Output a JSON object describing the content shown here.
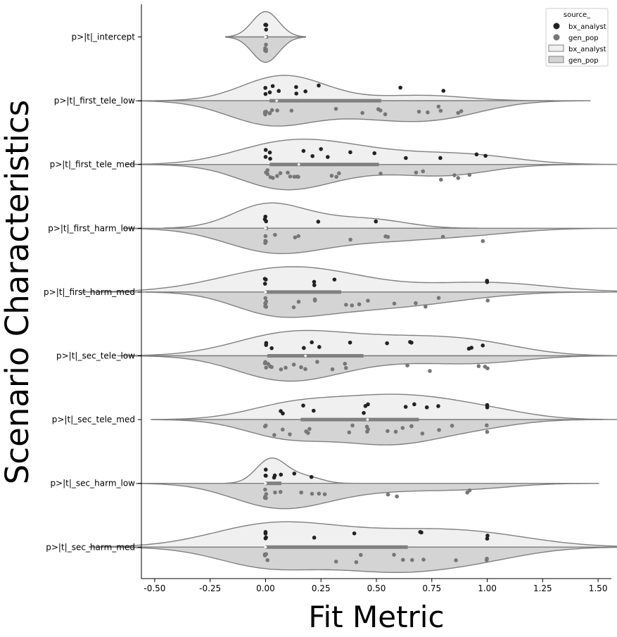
{
  "chart_data": {
    "type": "violin",
    "orientation": "horizontal",
    "xlabel": "Fit Metric",
    "ylabel": "Scenario Characteristics",
    "xlim": [
      -0.56,
      1.56
    ],
    "xticks": [
      "-0.50",
      "-0.25",
      "0.00",
      "0.25",
      "0.50",
      "0.75",
      "1.00",
      "1.25",
      "1.50"
    ],
    "categories": [
      "p>|t|_intercept",
      "p>|t|_first_tele_low",
      "p>|t|_first_tele_med",
      "p>|t|_first_harm_low",
      "p>|t|_first_harm_med",
      "p>|t|_sec_tele_low",
      "p>|t|_sec_tele_med",
      "p>|t|_sec_harm_low",
      "p>|t|_sec_harm_med"
    ],
    "legend": {
      "title": "source_",
      "position": "top-right",
      "entries": [
        {
          "label": "bx_analyst",
          "kind": "point",
          "color": "#222222"
        },
        {
          "label": "gen_pop",
          "kind": "point",
          "color": "#777777"
        },
        {
          "label": "bx_analyst",
          "kind": "patch",
          "color": "#f0f0f0"
        },
        {
          "label": "gen_pop",
          "kind": "patch",
          "color": "#d4d4d4"
        }
      ]
    },
    "colors": {
      "bx_analyst_point": "#222222",
      "gen_pop_point": "#777777",
      "bx_analyst_violin": "#f0f0f0",
      "gen_pop_violin": "#d4d4d4",
      "outline": "#808080"
    },
    "series": [
      {
        "name": "bx_analyst",
        "points": [
          [
            0.0,
            0.0,
            0.0,
            0.0
          ],
          [
            0.0,
            0.0,
            0.02,
            0.03,
            0.06,
            0.14,
            0.14,
            0.18,
            0.24,
            0.61,
            0.8
          ],
          [
            0.0,
            0.0,
            0.02,
            0.02,
            0.17,
            0.21,
            0.25,
            0.28,
            0.38,
            0.49,
            0.63,
            0.79,
            0.95,
            0.99
          ],
          [
            0.0,
            0.0,
            0.0,
            0.24,
            0.5
          ],
          [
            0.0,
            0.0,
            0.0,
            0.22,
            0.22,
            0.31,
            1.0,
            1.0
          ],
          [
            0.0,
            0.0,
            0.03,
            0.17,
            0.21,
            0.24,
            0.38,
            0.55,
            0.65,
            0.66,
            0.92,
            0.93,
            0.98
          ],
          [
            0.07,
            0.08,
            0.17,
            0.22,
            0.44,
            0.45,
            0.46,
            0.63,
            0.67,
            0.73,
            0.78,
            1.0,
            1.0
          ],
          [
            0.0,
            0.0,
            0.0,
            0.04,
            0.04,
            0.07,
            0.13,
            0.21
          ],
          [
            0.0,
            0.0,
            0.0,
            0.0,
            0.22,
            0.4,
            0.7,
            0.7,
            1.0,
            1.0
          ]
        ]
      },
      {
        "name": "gen_pop",
        "points": [
          [
            0.0,
            0.0,
            0.0,
            0.0,
            0.0,
            0.0
          ],
          [
            0.0,
            0.0,
            0.0,
            0.0,
            0.02,
            0.02,
            0.03,
            0.05,
            0.12,
            0.32,
            0.44,
            0.51,
            0.52,
            0.54,
            0.69,
            0.73,
            0.78,
            0.79,
            0.87,
            0.88
          ],
          [
            0.0,
            0.01,
            0.01,
            0.02,
            0.03,
            0.05,
            0.07,
            0.1,
            0.11,
            0.13,
            0.14,
            0.15,
            0.3,
            0.32,
            0.33,
            0.52,
            0.68,
            0.71,
            0.79,
            0.85,
            0.87,
            0.92
          ],
          [
            0.0,
            0.0,
            0.0,
            0.0,
            0.04,
            0.13,
            0.15,
            0.38,
            0.54,
            0.55,
            0.8,
            0.98
          ],
          [
            0.0,
            0.0,
            0.0,
            0.0,
            0.0,
            0.0,
            0.13,
            0.15,
            0.22,
            0.22,
            0.36,
            0.39,
            0.42,
            0.46,
            0.58,
            0.68,
            0.72,
            0.78,
            1.0
          ],
          [
            0.0,
            0.0,
            0.0,
            0.01,
            0.02,
            0.03,
            0.07,
            0.09,
            0.13,
            0.16,
            0.18,
            0.23,
            0.3,
            0.36,
            0.36,
            0.64,
            0.74,
            0.96,
            0.99,
            1.0
          ],
          [
            0.0,
            0.0,
            0.04,
            0.08,
            0.11,
            0.18,
            0.19,
            0.2,
            0.38,
            0.39,
            0.46,
            0.46,
            0.46,
            0.55,
            0.59,
            0.62,
            0.66,
            0.66,
            0.71,
            0.78,
            0.84,
            1.0,
            1.0
          ],
          [
            0.0,
            0.0,
            0.0,
            0.0,
            0.0,
            0.04,
            0.07,
            0.16,
            0.21,
            0.24,
            0.27,
            0.55,
            0.59,
            0.91,
            0.92
          ],
          [
            0.0,
            0.0,
            0.0,
            0.0,
            0.01,
            0.32,
            0.41,
            0.43,
            0.58,
            0.62,
            0.66,
            0.71,
            0.86,
            1.0,
            1.0
          ]
        ]
      }
    ],
    "box_summary": [
      {
        "q1": 0.0,
        "median": 0.0,
        "q3": 0.0,
        "whisker_low": 0.0,
        "whisker_high": 0.0
      },
      {
        "q1": 0.02,
        "median": 0.05,
        "q3": 0.52,
        "whisker_low": 0.0,
        "whisker_high": 0.88
      },
      {
        "q1": 0.02,
        "median": 0.15,
        "q3": 0.51,
        "whisker_low": 0.0,
        "whisker_high": 0.99
      },
      {
        "q1": 0.0,
        "median": 0.0,
        "q3": 0.0,
        "whisker_low": 0.0,
        "whisker_high": 0.0
      },
      {
        "q1": 0.0,
        "median": 0.0,
        "q3": 0.34,
        "whisker_low": 0.0,
        "whisker_high": 0.79
      },
      {
        "q1": 0.01,
        "median": 0.18,
        "q3": 0.44,
        "whisker_low": 0.0,
        "whisker_high": 1.0
      },
      {
        "q1": 0.16,
        "median": 0.46,
        "q3": 0.69,
        "whisker_low": 0.0,
        "whisker_high": 1.0
      },
      {
        "q1": 0.0,
        "median": 0.0,
        "q3": 0.07,
        "whisker_low": 0.0,
        "whisker_high": 0.21
      },
      {
        "q1": 0.0,
        "median": 0.0,
        "q3": 0.64,
        "whisker_low": 0.0,
        "whisker_high": 1.0
      }
    ],
    "grid": false
  }
}
